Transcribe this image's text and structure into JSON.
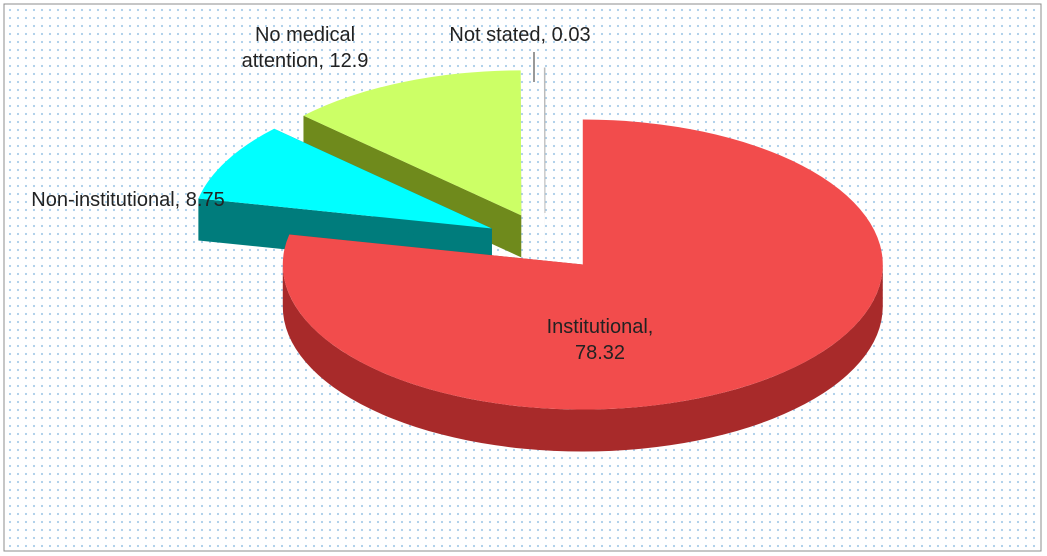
{
  "chart_data": {
    "type": "pie3d",
    "values": [
      78.32,
      8.75,
      12.9,
      0.03
    ],
    "value_labels": [
      "Institutional, 78.32",
      "Non-institutional, 8.75",
      "No medical attention, 12.9",
      "Not stated, 0.03"
    ],
    "colors": [
      "#f24c4c",
      "#00ffff",
      "#ccff66",
      "#ffffff"
    ],
    "side_colors": [
      "#a82a2a",
      "#007c7c",
      "#6f8a1c",
      "#dddddd"
    ]
  }
}
